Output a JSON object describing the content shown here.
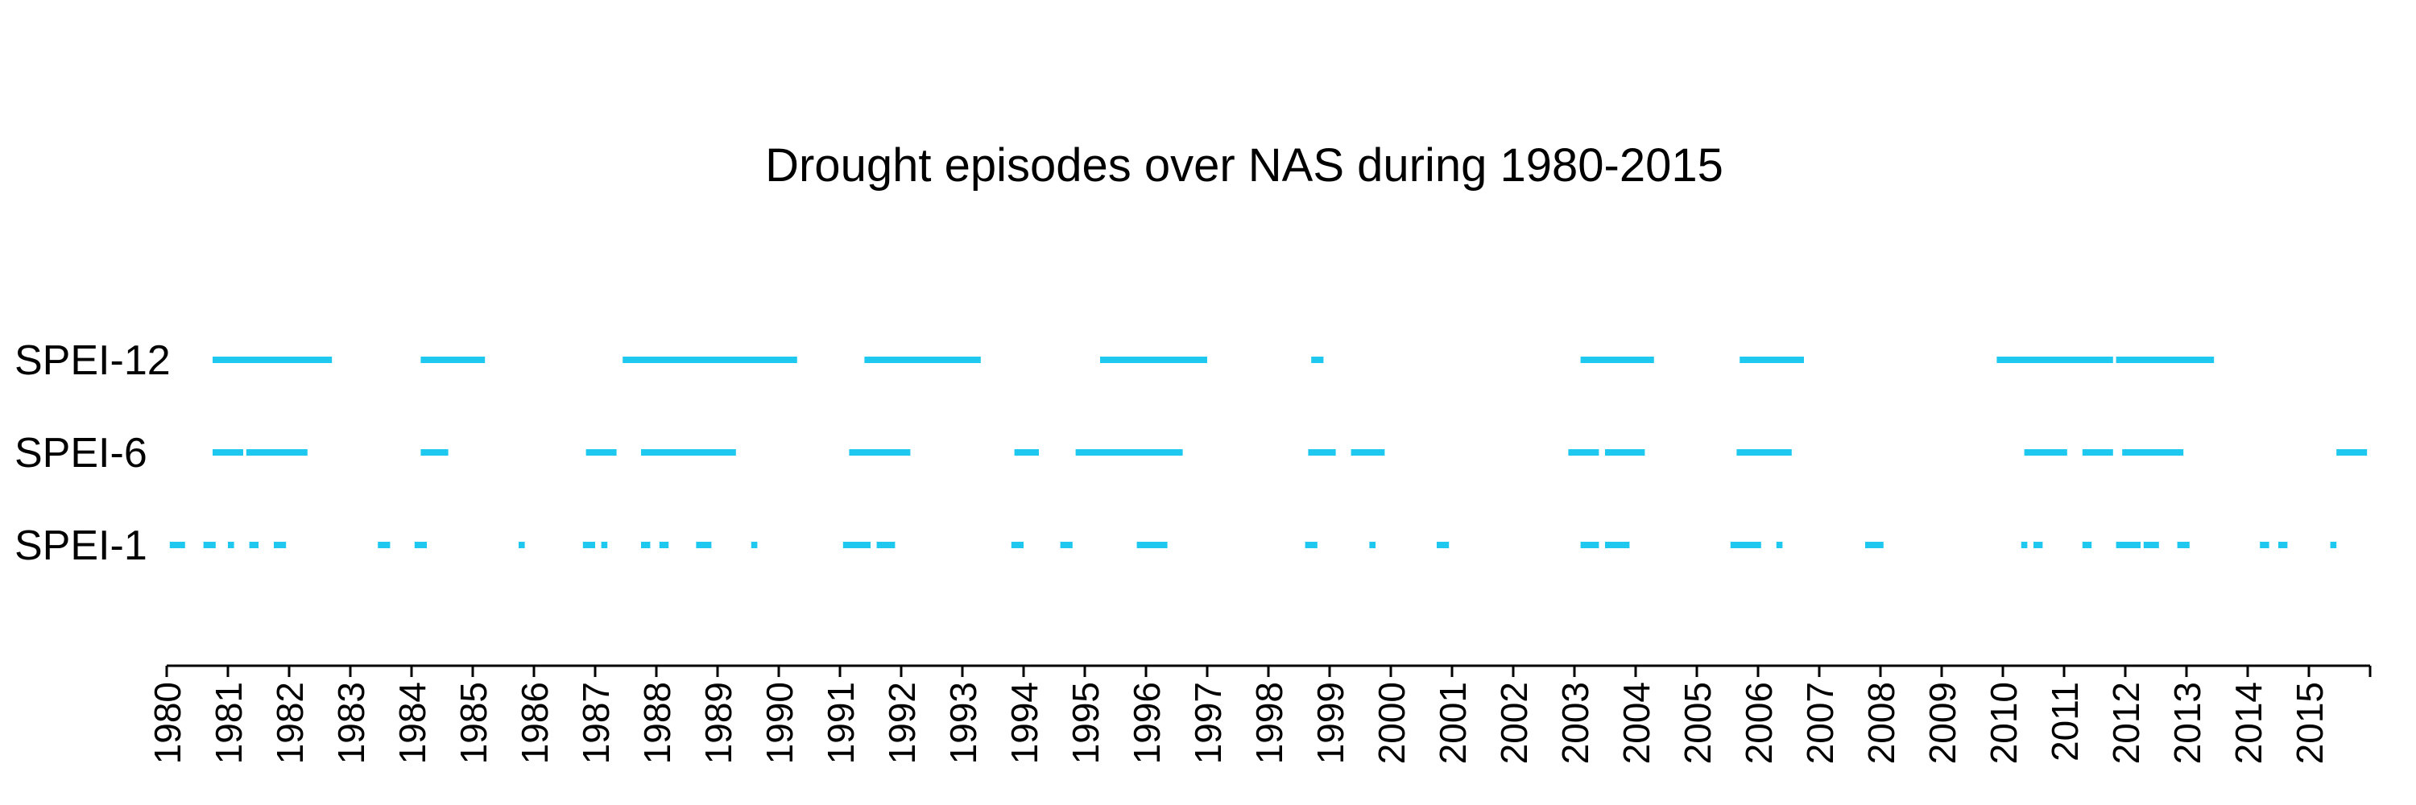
{
  "chart_data": {
    "type": "timeline",
    "title": "Drought episodes over NAS during 1980-2015",
    "xlabel": "",
    "ylabel": "",
    "xlim": [
      1980,
      2016
    ],
    "grid": false,
    "legend": "none",
    "color": "#1ec8ef",
    "ticks": [
      "1980",
      "1981",
      "1982",
      "1983",
      "1984",
      "1985",
      "1986",
      "1987",
      "1988",
      "1989",
      "1990",
      "1991",
      "1992",
      "1993",
      "1994",
      "1995",
      "1996",
      "1997",
      "1998",
      "1999",
      "2000",
      "2001",
      "2002",
      "2003",
      "2004",
      "2005",
      "2006",
      "2007",
      "2008",
      "2009",
      "2010",
      "2011",
      "2012",
      "2013",
      "2014",
      "2015"
    ],
    "series": [
      {
        "name": "SPEI-12",
        "episodes": [
          [
            1980.75,
            1982.7
          ],
          [
            1984.15,
            1985.2
          ],
          [
            1987.45,
            1990.3
          ],
          [
            1991.4,
            1993.3
          ],
          [
            1995.25,
            1997.0
          ],
          [
            1998.7,
            1998.9
          ],
          [
            2003.1,
            2004.3
          ],
          [
            2005.7,
            2006.75
          ],
          [
            2009.9,
            2011.8
          ],
          [
            2011.85,
            2013.45
          ]
        ]
      },
      {
        "name": "SPEI-6",
        "episodes": [
          [
            1980.75,
            1981.25
          ],
          [
            1981.3,
            1982.3
          ],
          [
            1984.15,
            1984.6
          ],
          [
            1986.85,
            1987.35
          ],
          [
            1987.75,
            1989.3
          ],
          [
            1991.15,
            1992.15
          ],
          [
            1993.85,
            1994.25
          ],
          [
            1994.85,
            1996.6
          ],
          [
            1998.65,
            1999.1
          ],
          [
            1999.35,
            1999.9
          ],
          [
            2002.9,
            2003.4
          ],
          [
            2003.5,
            2004.15
          ],
          [
            2005.65,
            2006.55
          ],
          [
            2010.35,
            2011.05
          ],
          [
            2011.3,
            2011.8
          ],
          [
            2011.95,
            2012.95
          ],
          [
            2015.45,
            2015.95
          ]
        ]
      },
      {
        "name": "SPEI-1",
        "episodes": [
          [
            1980.05,
            1980.3
          ],
          [
            1980.6,
            1980.8
          ],
          [
            1981.0,
            1981.1
          ],
          [
            1981.35,
            1981.5
          ],
          [
            1981.75,
            1981.95
          ],
          [
            1983.45,
            1983.65
          ],
          [
            1984.05,
            1984.25
          ],
          [
            1985.75,
            1985.85
          ],
          [
            1986.8,
            1987.0
          ],
          [
            1987.1,
            1987.2
          ],
          [
            1987.75,
            1987.9
          ],
          [
            1988.05,
            1988.2
          ],
          [
            1988.65,
            1988.9
          ],
          [
            1989.55,
            1989.65
          ],
          [
            1991.05,
            1991.5
          ],
          [
            1991.6,
            1991.9
          ],
          [
            1993.8,
            1994.0
          ],
          [
            1994.6,
            1994.8
          ],
          [
            1995.85,
            1996.35
          ],
          [
            1998.6,
            1998.8
          ],
          [
            1999.65,
            1999.75
          ],
          [
            2000.75,
            2000.95
          ],
          [
            2003.1,
            2003.4
          ],
          [
            2003.5,
            2003.9
          ],
          [
            2005.55,
            2006.05
          ],
          [
            2006.3,
            2006.4
          ],
          [
            2007.75,
            2008.05
          ],
          [
            2010.3,
            2010.4
          ],
          [
            2010.5,
            2010.65
          ],
          [
            2011.3,
            2011.45
          ],
          [
            2011.85,
            2012.25
          ],
          [
            2012.3,
            2012.55
          ],
          [
            2012.85,
            2013.05
          ],
          [
            2014.2,
            2014.35
          ],
          [
            2014.5,
            2014.65
          ],
          [
            2015.35,
            2015.45
          ]
        ]
      }
    ]
  }
}
